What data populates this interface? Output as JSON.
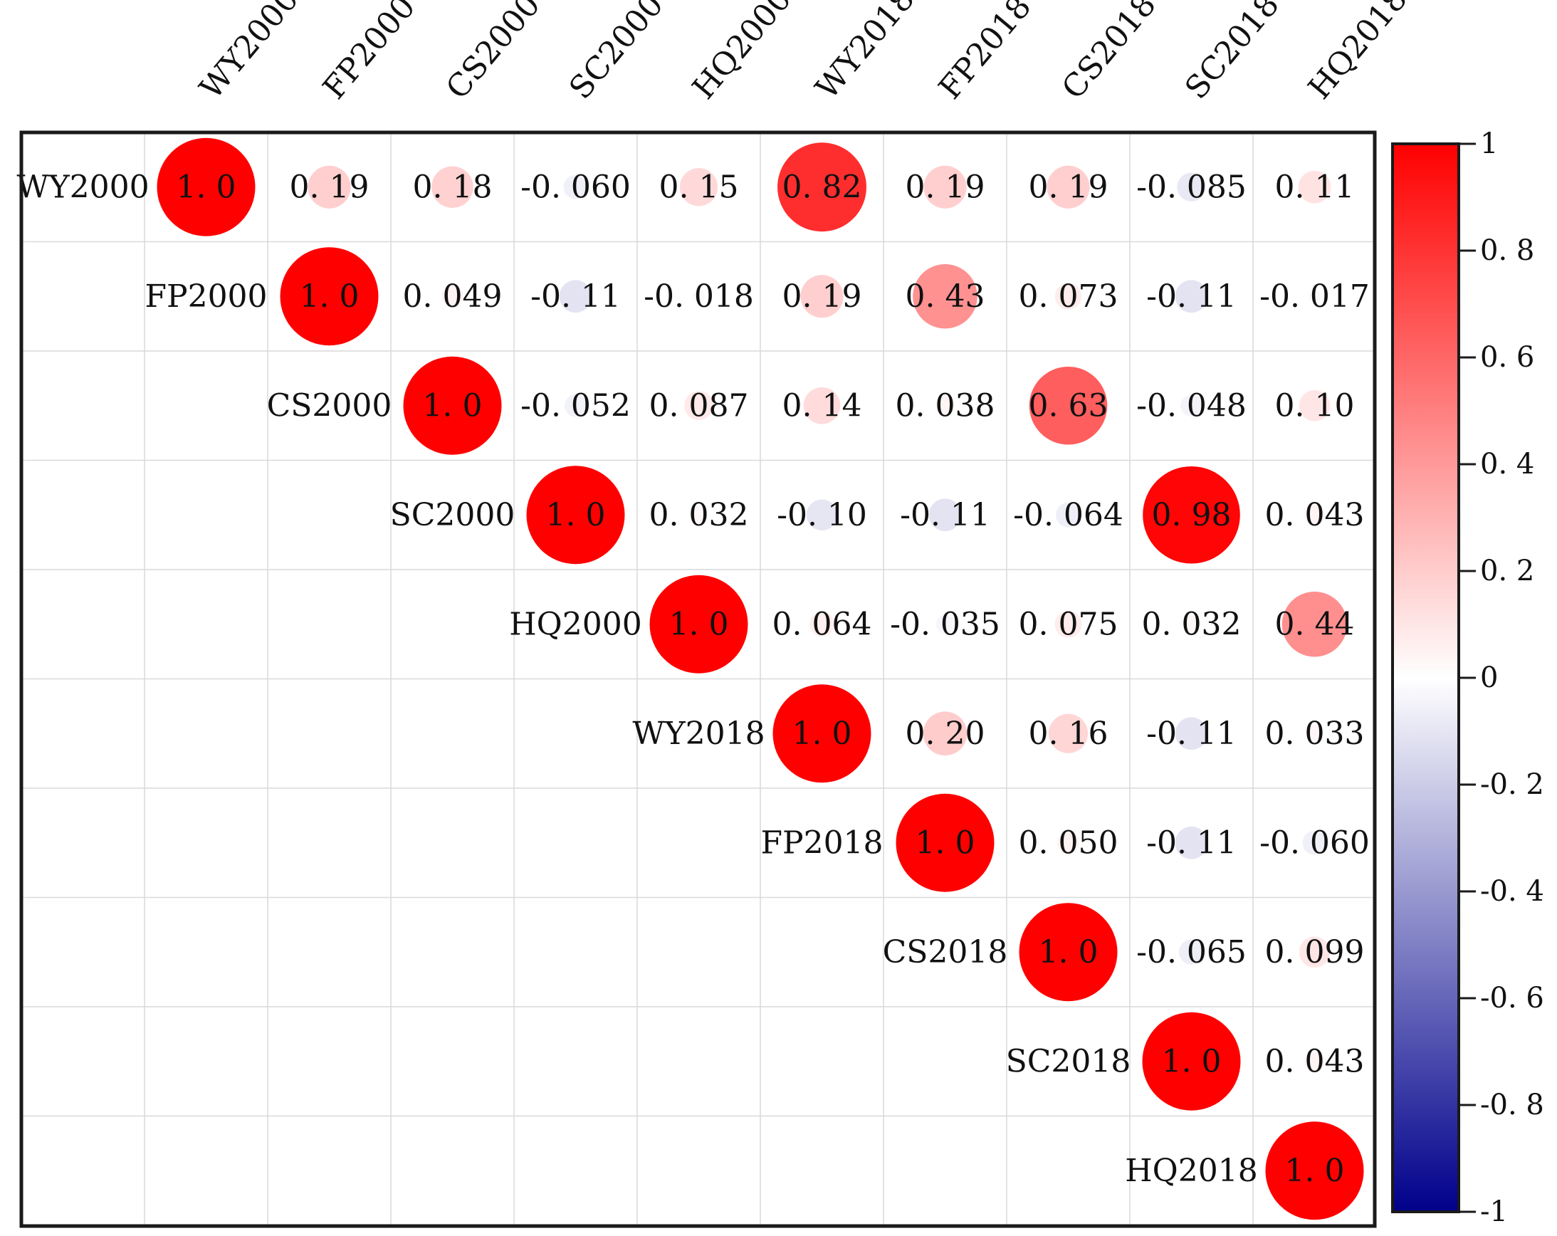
{
  "chart_data": {
    "type": "correlation-matrix",
    "variables": [
      "WY2000",
      "FP2000",
      "CS2000",
      "SC2000",
      "HQ2000",
      "WY2018",
      "FP2018",
      "CS2018",
      "SC2018",
      "HQ2018"
    ],
    "cells": [
      [
        "1.0",
        "0.19",
        "0.18",
        "-0.060",
        "0.15",
        "0.82",
        "0.19",
        "0.19",
        "-0.085",
        "0.11"
      ],
      [
        null,
        "1.0",
        "0.049",
        "-0.11",
        "-0.018",
        "0.19",
        "0.43",
        "0.073",
        "-0.11",
        "-0.017"
      ],
      [
        null,
        null,
        "1.0",
        "-0.052",
        "0.087",
        "0.14",
        "0.038",
        "0.63",
        "-0.048",
        "0.10"
      ],
      [
        null,
        null,
        null,
        "1.0",
        "0.032",
        "-0.10",
        "-0.11",
        "-0.064",
        "0.98",
        "0.043"
      ],
      [
        null,
        null,
        null,
        null,
        "1.0",
        "0.064",
        "-0.035",
        "0.075",
        "0.032",
        "0.44"
      ],
      [
        null,
        null,
        null,
        null,
        null,
        "1.0",
        "0.20",
        "0.16",
        "-0.11",
        "0.033"
      ],
      [
        null,
        null,
        null,
        null,
        null,
        null,
        "1.0",
        "0.050",
        "-0.11",
        "-0.060"
      ],
      [
        null,
        null,
        null,
        null,
        null,
        null,
        null,
        "1.0",
        "-0.065",
        "0.099"
      ],
      [
        null,
        null,
        null,
        null,
        null,
        null,
        null,
        null,
        "1.0",
        "0.043"
      ],
      [
        null,
        null,
        null,
        null,
        null,
        null,
        null,
        null,
        null,
        "1.0"
      ]
    ],
    "display_labels": [
      [
        "1. 0",
        "0. 19",
        "0. 18",
        "-0. 060",
        "0. 15",
        "0. 82",
        "0. 19",
        "0. 19",
        "-0. 085",
        "0. 11"
      ],
      [
        null,
        "1. 0",
        "0. 049",
        "-0. 11",
        "-0. 018",
        "0. 19",
        "0. 43",
        "0. 073",
        "-0. 11",
        "-0. 017"
      ],
      [
        null,
        null,
        "1. 0",
        "-0. 052",
        "0. 087",
        "0. 14",
        "0. 038",
        "0. 63",
        "-0. 048",
        "0. 10"
      ],
      [
        null,
        null,
        null,
        "1. 0",
        "0. 032",
        "-0. 10",
        "-0. 11",
        "-0. 064",
        "0. 98",
        "0. 043"
      ],
      [
        null,
        null,
        null,
        null,
        "1. 0",
        "0. 064",
        "-0. 035",
        "0. 075",
        "0. 032",
        "0. 44"
      ],
      [
        null,
        null,
        null,
        null,
        null,
        "1. 0",
        "0. 20",
        "0. 16",
        "-0. 11",
        "0. 033"
      ],
      [
        null,
        null,
        null,
        null,
        null,
        null,
        "1. 0",
        "0. 050",
        "-0. 11",
        "-0. 060"
      ],
      [
        null,
        null,
        null,
        null,
        null,
        null,
        null,
        "1. 0",
        "-0. 065",
        "0. 099"
      ],
      [
        null,
        null,
        null,
        null,
        null,
        null,
        null,
        null,
        "1. 0",
        "0. 043"
      ],
      [
        null,
        null,
        null,
        null,
        null,
        null,
        null,
        null,
        null,
        "1. 0"
      ]
    ],
    "colorbar": {
      "range": [
        -1,
        1
      ],
      "ticks": [
        "1",
        "0. 8",
        "0. 6",
        "0. 4",
        "0. 2",
        "0",
        "-0. 2",
        "-0. 4",
        "-0. 6",
        "-0. 8",
        "-1"
      ],
      "tick_values": [
        1,
        0.8,
        0.6,
        0.4,
        0.2,
        0,
        -0.2,
        -0.4,
        -0.6,
        -0.8,
        -1
      ],
      "colors": {
        "positive": "#ff0000",
        "zero": "#ffffff",
        "negative": "#00008b"
      }
    },
    "grid": true,
    "legend": "right"
  }
}
